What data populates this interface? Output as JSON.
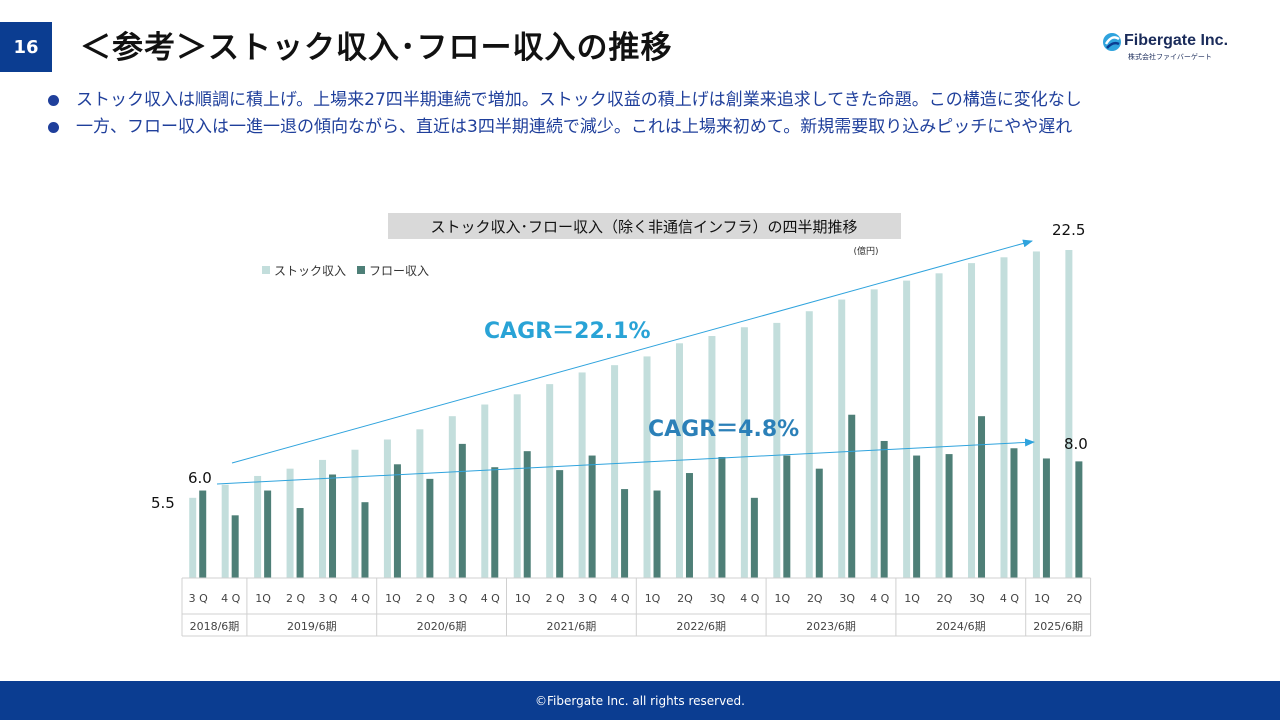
{
  "page": {
    "number": "16",
    "title": "＜参考＞ストック収入･フロー収入の推移"
  },
  "logo": {
    "name": "Fibergate Inc.",
    "sub": "株式会社ファイバーゲート"
  },
  "bullets": [
    "ストック収入は順調に積上げ。上場来27四半期連続で増加。ストック収益の積上げは創業来追求してきた命題。この構造に変化なし",
    "一方、フロー収入は一進一退の傾向ながら、直近は3四半期連続で減少。これは上場来初めて。新規需要取り込みピッチにやや遅れ"
  ],
  "footer": {
    "copyright": "©Fibergate Inc. all rights reserved."
  },
  "colors": {
    "stock": "#c3dedc",
    "flow": "#4e7f77",
    "cagr_text": "#29a3d6",
    "cagr_flow_text": "#2b80b8",
    "arrow": "#2fa3dd",
    "brand": "#0b3d91",
    "bullet_text": "#1f3f9b"
  },
  "chart_data": {
    "type": "bar",
    "title": "ストック収入･フロー収入（除く非通信インフラ）の四半期推移",
    "unit": "(億円)",
    "categories": [
      "3Q",
      "4Q",
      "1Q",
      "2Q",
      "3Q",
      "4Q",
      "1Q",
      "2Q",
      "3Q",
      "4Q",
      "1Q",
      "2Q",
      "3Q",
      "4Q",
      "1Q",
      "2Q",
      "3Q",
      "4Q",
      "1Q",
      "2Q",
      "3Q",
      "4Q",
      "1Q",
      "2Q",
      "3Q",
      "4Q",
      "1Q",
      "2Q"
    ],
    "category_labels": [
      "3 Q",
      "4 Q",
      "1Q",
      "2 Q",
      "3 Q",
      "4 Q",
      "1Q",
      "2 Q",
      "3 Q",
      "4 Q",
      "1Q",
      "2 Q",
      "3 Q",
      "4 Q",
      "1Q",
      "2Q",
      "3Q",
      "4 Q",
      "1Q",
      "2Q",
      "3Q",
      "4 Q",
      "1Q",
      "2Q",
      "3Q",
      "4 Q",
      "1Q",
      "2Q"
    ],
    "year_groups": [
      {
        "label": "2018/6期",
        "count": 2
      },
      {
        "label": "2019/6期",
        "count": 4
      },
      {
        "label": "2020/6期",
        "count": 4
      },
      {
        "label": "2021/6期",
        "count": 4
      },
      {
        "label": "2022/6期",
        "count": 4
      },
      {
        "label": "2023/6期",
        "count": 4
      },
      {
        "label": "2024/6期",
        "count": 4
      },
      {
        "label": "2025/6期",
        "count": 2
      }
    ],
    "series": [
      {
        "name": "ストック収入",
        "values": [
          5.5,
          6.4,
          7.0,
          7.5,
          8.1,
          8.8,
          9.5,
          10.2,
          11.1,
          11.9,
          12.6,
          13.3,
          14.1,
          14.6,
          15.2,
          16.1,
          16.6,
          17.2,
          17.5,
          18.3,
          19.1,
          19.8,
          20.4,
          20.9,
          21.6,
          22.0,
          22.4,
          22.5
        ]
      },
      {
        "name": "フロー収入",
        "values": [
          6.0,
          4.3,
          6.0,
          4.8,
          7.1,
          5.2,
          7.8,
          6.8,
          9.2,
          7.6,
          8.7,
          7.4,
          8.4,
          6.1,
          6.0,
          7.2,
          8.3,
          5.5,
          8.4,
          7.5,
          11.2,
          9.4,
          8.4,
          8.5,
          11.1,
          8.9,
          8.2,
          8.0
        ]
      }
    ],
    "data_labels": {
      "stock_first": "5.5",
      "flow_first": "6.0",
      "stock_last": "22.5",
      "flow_last": "8.0"
    },
    "annotations": {
      "stock_cagr": "CAGR＝22.1%",
      "flow_cagr": "CAGR＝4.8%"
    },
    "legend_position": "top-left",
    "ylim": [
      0,
      24
    ]
  }
}
